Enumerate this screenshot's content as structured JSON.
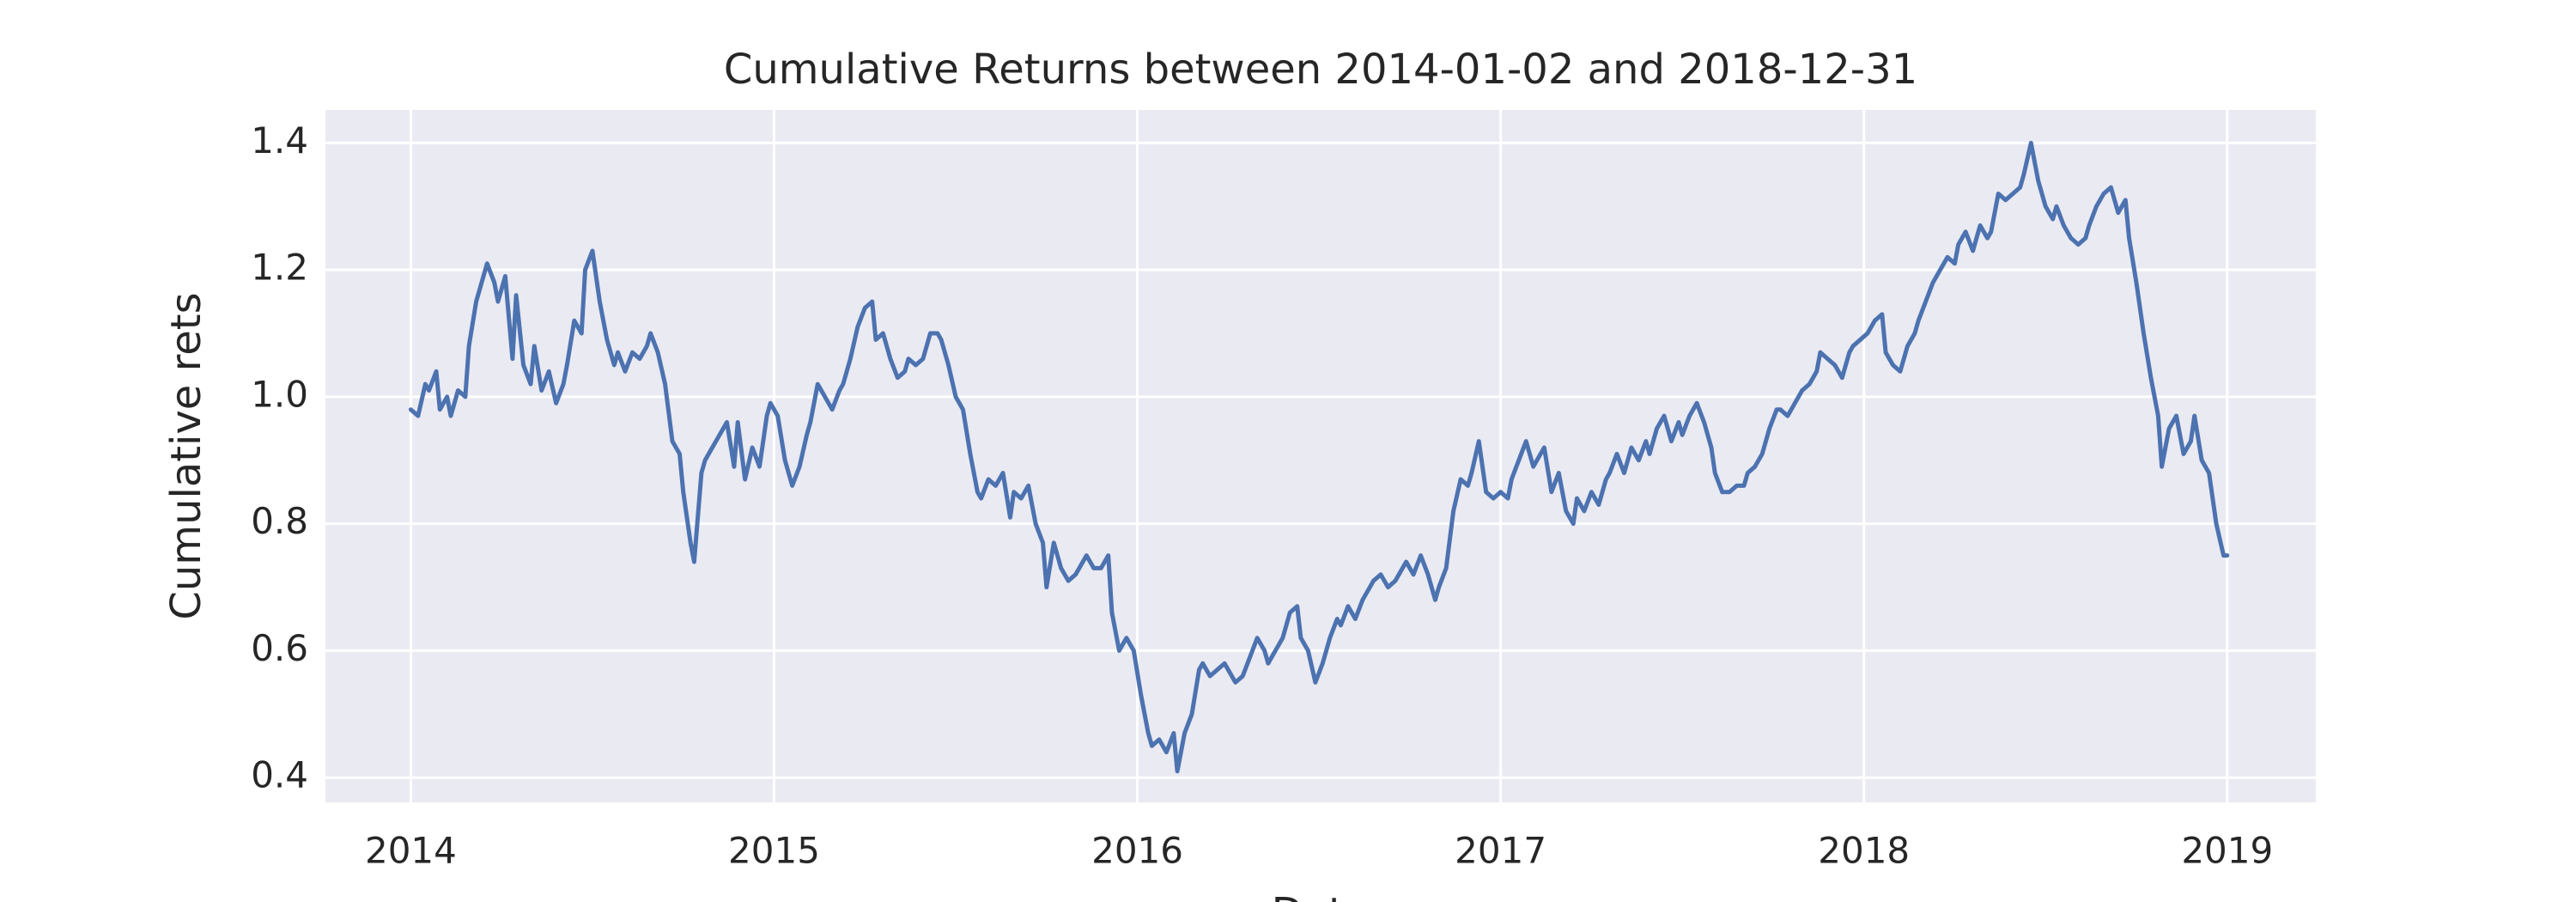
{
  "chart_data": {
    "type": "line",
    "title": "Cumulative Returns between 2014-01-02 and 2018-12-31",
    "xlabel": "Date",
    "ylabel": "Cumulative rets",
    "color": "#4c72b0",
    "grid": true,
    "xlim": [
      2013.765,
      2019.244
    ],
    "xticks": [
      2014,
      2015,
      2016,
      2017,
      2018,
      2019
    ],
    "ylim": [
      0.361,
      1.452
    ],
    "yticks": [
      0.4,
      0.6,
      0.8,
      {
        "value": 1,
        "label": "1.0"
      },
      1.2,
      1.4
    ],
    "x": [
      2014.0,
      2014.02,
      2014.04,
      2014.05,
      2014.07,
      2014.08,
      2014.1,
      2014.11,
      2014.13,
      2014.15,
      2014.16,
      2014.18,
      2014.2,
      2014.21,
      2014.23,
      2014.24,
      2014.26,
      2014.28,
      2014.29,
      2014.31,
      2014.33,
      2014.34,
      2014.36,
      2014.38,
      2014.4,
      2014.42,
      2014.43,
      2014.45,
      2014.47,
      2014.48,
      2014.5,
      2014.52,
      2014.54,
      2014.56,
      2014.57,
      2014.59,
      2014.61,
      2014.63,
      2014.65,
      2014.66,
      2014.68,
      2014.7,
      2014.72,
      2014.74,
      2014.75,
      2014.77,
      2014.78,
      2014.8,
      2014.81,
      2014.83,
      2014.85,
      2014.87,
      2014.89,
      2014.9,
      2014.92,
      2014.94,
      2014.96,
      2014.98,
      2014.99,
      2015.01,
      2015.03,
      2015.05,
      2015.07,
      2015.09,
      2015.1,
      2015.12,
      2015.14,
      2015.16,
      2015.18,
      2015.19,
      2015.21,
      2015.23,
      2015.25,
      2015.27,
      2015.28,
      2015.3,
      2015.32,
      2015.34,
      2015.36,
      2015.37,
      2015.39,
      2015.41,
      2015.43,
      2015.45,
      2015.46,
      2015.48,
      2015.5,
      2015.52,
      2015.54,
      2015.56,
      2015.57,
      2015.59,
      2015.61,
      2015.63,
      2015.65,
      2015.66,
      2015.68,
      2015.7,
      2015.72,
      2015.74,
      2015.75,
      2015.77,
      2015.79,
      2015.81,
      2015.83,
      2015.84,
      2015.86,
      2015.88,
      2015.9,
      2015.92,
      2015.93,
      2015.95,
      2015.97,
      2015.99,
      2016.01,
      2016.03,
      2016.04,
      2016.06,
      2016.08,
      2016.1,
      2016.11,
      2016.13,
      2016.15,
      2016.17,
      2016.18,
      2016.2,
      2016.22,
      2016.24,
      2016.26,
      2016.27,
      2016.29,
      2016.31,
      2016.33,
      2016.35,
      2016.36,
      2016.38,
      2016.4,
      2016.42,
      2016.44,
      2016.45,
      2016.47,
      2016.49,
      2016.51,
      2016.53,
      2016.55,
      2016.56,
      2016.58,
      2016.6,
      2016.62,
      2016.64,
      2016.65,
      2016.67,
      2016.69,
      2016.71,
      2016.73,
      2016.74,
      2016.76,
      2016.78,
      2016.8,
      2016.82,
      2016.83,
      2016.85,
      2016.87,
      2016.89,
      2016.91,
      2016.92,
      2016.94,
      2016.96,
      2016.98,
      2017.0,
      2017.02,
      2017.03,
      2017.05,
      2017.07,
      2017.09,
      2017.11,
      2017.12,
      2017.14,
      2017.16,
      2017.18,
      2017.2,
      2017.21,
      2017.23,
      2017.25,
      2017.27,
      2017.29,
      2017.3,
      2017.32,
      2017.34,
      2017.36,
      2017.38,
      2017.4,
      2017.41,
      2017.43,
      2017.45,
      2017.47,
      2017.49,
      2017.5,
      2017.52,
      2017.54,
      2017.56,
      2017.58,
      2017.59,
      2017.61,
      2017.63,
      2017.65,
      2017.67,
      2017.68,
      2017.7,
      2017.72,
      2017.74,
      2017.76,
      2017.77,
      2017.79,
      2017.81,
      2017.83,
      2017.85,
      2017.87,
      2017.88,
      2017.9,
      2017.92,
      2017.94,
      2017.96,
      2017.97,
      2017.99,
      2018.01,
      2018.03,
      2018.05,
      2018.06,
      2018.08,
      2018.1,
      2018.12,
      2018.14,
      2018.15,
      2018.17,
      2018.19,
      2018.21,
      2018.23,
      2018.25,
      2018.26,
      2018.28,
      2018.3,
      2018.32,
      2018.34,
      2018.35,
      2018.37,
      2018.39,
      2018.41,
      2018.43,
      2018.44,
      2018.46,
      2018.48,
      2018.5,
      2018.52,
      2018.53,
      2018.55,
      2018.57,
      2018.59,
      2018.61,
      2018.62,
      2018.64,
      2018.66,
      2018.68,
      2018.7,
      2018.72,
      2018.73,
      2018.75,
      2018.77,
      2018.79,
      2018.81,
      2018.82,
      2018.84,
      2018.86,
      2018.88,
      2018.9,
      2018.91,
      2018.93,
      2018.95,
      2018.97,
      2018.99,
      2019.0
    ],
    "values": [
      0.98,
      0.97,
      1.02,
      1.01,
      1.04,
      0.98,
      1.0,
      0.97,
      1.01,
      1.0,
      1.08,
      1.15,
      1.19,
      1.21,
      1.18,
      1.15,
      1.19,
      1.06,
      1.16,
      1.05,
      1.02,
      1.08,
      1.01,
      1.04,
      0.99,
      1.02,
      1.05,
      1.12,
      1.1,
      1.2,
      1.23,
      1.15,
      1.09,
      1.05,
      1.07,
      1.04,
      1.07,
      1.06,
      1.08,
      1.1,
      1.07,
      1.02,
      0.93,
      0.91,
      0.85,
      0.77,
      0.74,
      0.88,
      0.9,
      0.92,
      0.94,
      0.96,
      0.89,
      0.96,
      0.87,
      0.92,
      0.89,
      0.97,
      0.99,
      0.97,
      0.9,
      0.86,
      0.89,
      0.94,
      0.96,
      1.02,
      1.0,
      0.98,
      1.01,
      1.02,
      1.06,
      1.11,
      1.14,
      1.15,
      1.09,
      1.1,
      1.06,
      1.03,
      1.04,
      1.06,
      1.05,
      1.06,
      1.1,
      1.1,
      1.09,
      1.05,
      1.0,
      0.98,
      0.91,
      0.85,
      0.84,
      0.87,
      0.86,
      0.88,
      0.81,
      0.85,
      0.84,
      0.86,
      0.8,
      0.77,
      0.7,
      0.77,
      0.73,
      0.71,
      0.72,
      0.73,
      0.75,
      0.73,
      0.73,
      0.75,
      0.66,
      0.6,
      0.62,
      0.6,
      0.53,
      0.47,
      0.45,
      0.46,
      0.44,
      0.47,
      0.41,
      0.47,
      0.5,
      0.57,
      0.58,
      0.56,
      0.57,
      0.58,
      0.56,
      0.55,
      0.56,
      0.59,
      0.62,
      0.6,
      0.58,
      0.6,
      0.62,
      0.66,
      0.67,
      0.62,
      0.6,
      0.55,
      0.58,
      0.62,
      0.65,
      0.64,
      0.67,
      0.65,
      0.68,
      0.7,
      0.71,
      0.72,
      0.7,
      0.71,
      0.73,
      0.74,
      0.72,
      0.75,
      0.72,
      0.68,
      0.7,
      0.73,
      0.82,
      0.87,
      0.86,
      0.88,
      0.93,
      0.85,
      0.84,
      0.85,
      0.84,
      0.87,
      0.9,
      0.93,
      0.89,
      0.91,
      0.92,
      0.85,
      0.88,
      0.82,
      0.8,
      0.84,
      0.82,
      0.85,
      0.83,
      0.87,
      0.88,
      0.91,
      0.88,
      0.92,
      0.9,
      0.93,
      0.91,
      0.95,
      0.97,
      0.93,
      0.96,
      0.94,
      0.97,
      0.99,
      0.96,
      0.92,
      0.88,
      0.85,
      0.85,
      0.86,
      0.86,
      0.88,
      0.89,
      0.91,
      0.95,
      0.98,
      0.98,
      0.97,
      0.99,
      1.01,
      1.02,
      1.04,
      1.07,
      1.06,
      1.05,
      1.03,
      1.07,
      1.08,
      1.09,
      1.1,
      1.12,
      1.13,
      1.07,
      1.05,
      1.04,
      1.08,
      1.1,
      1.12,
      1.15,
      1.18,
      1.2,
      1.22,
      1.21,
      1.24,
      1.26,
      1.23,
      1.27,
      1.25,
      1.26,
      1.32,
      1.31,
      1.32,
      1.33,
      1.35,
      1.4,
      1.34,
      1.3,
      1.28,
      1.3,
      1.27,
      1.25,
      1.24,
      1.25,
      1.27,
      1.3,
      1.32,
      1.33,
      1.29,
      1.31,
      1.25,
      1.18,
      1.1,
      1.03,
      0.97,
      0.89,
      0.95,
      0.97,
      0.91,
      0.93,
      0.97,
      0.9,
      0.88,
      0.8,
      0.75,
      0.75
    ]
  }
}
